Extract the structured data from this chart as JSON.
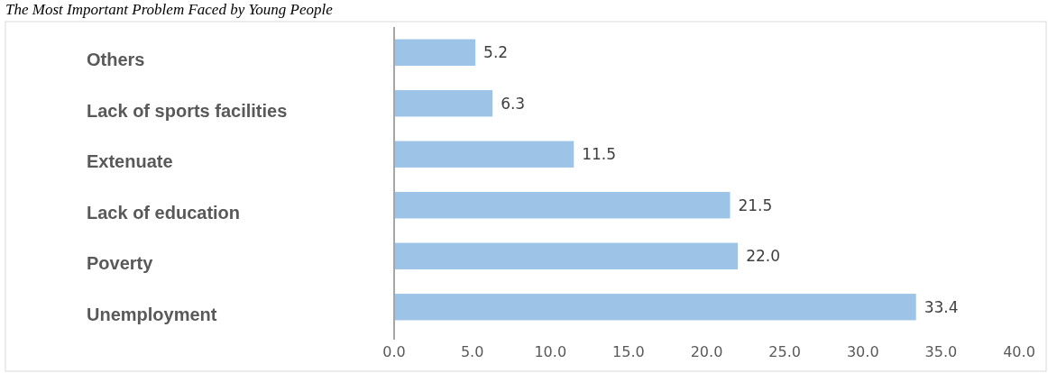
{
  "chart_data": {
    "type": "bar",
    "orientation": "horizontal",
    "title": "The Most Important Problem Faced by Young People",
    "categories": [
      "Others",
      "Lack of sports facilities",
      "Extenuate",
      "Lack of education",
      "Poverty",
      "Unemployment"
    ],
    "values": [
      5.2,
      6.3,
      11.5,
      21.5,
      22.0,
      33.4
    ],
    "color": "#9dc3e6",
    "xlim": [
      0,
      40
    ],
    "xticks": [
      {
        "value": 0,
        "label": "0.0"
      },
      {
        "value": 5,
        "label": "5.0"
      },
      {
        "value": 10,
        "label": "10.0"
      },
      {
        "value": 15,
        "label": "15.0"
      },
      {
        "value": 20,
        "label": "20.0"
      },
      {
        "value": 25,
        "label": "25.0"
      },
      {
        "value": 30,
        "label": "30.0"
      },
      {
        "value": 35,
        "label": "35.0"
      },
      {
        "value": 40,
        "label": "40.0"
      }
    ],
    "value_labels": [
      "5.2",
      "6.3",
      "11.5",
      "21.5",
      "22.0",
      "33.4"
    ],
    "grid": false
  }
}
